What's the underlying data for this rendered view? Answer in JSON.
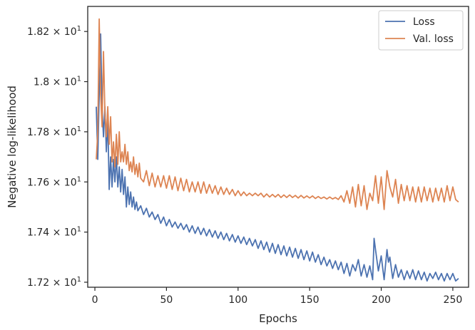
{
  "chart_data": {
    "type": "line",
    "title": "",
    "xlabel": "Epochs",
    "ylabel": "Negative log-likelihood",
    "xlim": [
      -5,
      261
    ],
    "ylim": [
      17.18,
      18.3
    ],
    "x_ticks": [
      {
        "value": 0,
        "label": "0"
      },
      {
        "value": 50,
        "label": "50"
      },
      {
        "value": 100,
        "label": "100"
      },
      {
        "value": 150,
        "label": "150"
      },
      {
        "value": 200,
        "label": "200"
      },
      {
        "value": 250,
        "label": "250"
      }
    ],
    "y_ticks": [
      {
        "value": 17.2,
        "base": "1.72",
        "exp": "1"
      },
      {
        "value": 17.4,
        "base": "1.74",
        "exp": "1"
      },
      {
        "value": 17.6,
        "base": "1.76",
        "exp": "1"
      },
      {
        "value": 17.8,
        "base": "1.78",
        "exp": "1"
      },
      {
        "value": 18.0,
        "base": "1.8",
        "exp": "1"
      },
      {
        "value": 18.2,
        "base": "1.82",
        "exp": "1"
      }
    ],
    "grid": false,
    "legend_position": "top-right",
    "series": [
      {
        "name": "Loss",
        "color": "#4c72b0",
        "points": [
          [
            1,
            17.9
          ],
          [
            2,
            17.69
          ],
          [
            3,
            17.95
          ],
          [
            4,
            18.19
          ],
          [
            5,
            17.9
          ],
          [
            6,
            17.78
          ],
          [
            7,
            17.9
          ],
          [
            8,
            17.72
          ],
          [
            9,
            17.85
          ],
          [
            10,
            17.57
          ],
          [
            11,
            17.7
          ],
          [
            12,
            17.58
          ],
          [
            13,
            17.69
          ],
          [
            14,
            17.6
          ],
          [
            15,
            17.7
          ],
          [
            16,
            17.58
          ],
          [
            17,
            17.66
          ],
          [
            18,
            17.56
          ],
          [
            19,
            17.65
          ],
          [
            20,
            17.55
          ],
          [
            21,
            17.62
          ],
          [
            22,
            17.5
          ],
          [
            23,
            17.58
          ],
          [
            24,
            17.51
          ],
          [
            25,
            17.56
          ],
          [
            26,
            17.5
          ],
          [
            27,
            17.54
          ],
          [
            28,
            17.49
          ],
          [
            29,
            17.52
          ],
          [
            30,
            17.485
          ],
          [
            32,
            17.505
          ],
          [
            34,
            17.47
          ],
          [
            36,
            17.495
          ],
          [
            38,
            17.46
          ],
          [
            40,
            17.48
          ],
          [
            42,
            17.45
          ],
          [
            44,
            17.47
          ],
          [
            46,
            17.435
          ],
          [
            48,
            17.46
          ],
          [
            50,
            17.425
          ],
          [
            52,
            17.45
          ],
          [
            54,
            17.42
          ],
          [
            56,
            17.44
          ],
          [
            58,
            17.415
          ],
          [
            60,
            17.435
          ],
          [
            62,
            17.41
          ],
          [
            64,
            17.43
          ],
          [
            66,
            17.4
          ],
          [
            68,
            17.425
          ],
          [
            70,
            17.395
          ],
          [
            72,
            17.42
          ],
          [
            74,
            17.39
          ],
          [
            76,
            17.415
          ],
          [
            78,
            17.385
          ],
          [
            80,
            17.41
          ],
          [
            82,
            17.38
          ],
          [
            84,
            17.405
          ],
          [
            86,
            17.375
          ],
          [
            88,
            17.4
          ],
          [
            90,
            17.37
          ],
          [
            92,
            17.395
          ],
          [
            94,
            17.365
          ],
          [
            96,
            17.39
          ],
          [
            98,
            17.36
          ],
          [
            100,
            17.385
          ],
          [
            102,
            17.355
          ],
          [
            104,
            17.38
          ],
          [
            106,
            17.35
          ],
          [
            108,
            17.375
          ],
          [
            110,
            17.345
          ],
          [
            112,
            17.37
          ],
          [
            114,
            17.335
          ],
          [
            116,
            17.365
          ],
          [
            118,
            17.33
          ],
          [
            120,
            17.36
          ],
          [
            122,
            17.32
          ],
          [
            124,
            17.355
          ],
          [
            126,
            17.315
          ],
          [
            128,
            17.35
          ],
          [
            130,
            17.31
          ],
          [
            132,
            17.345
          ],
          [
            134,
            17.305
          ],
          [
            136,
            17.34
          ],
          [
            138,
            17.3
          ],
          [
            140,
            17.335
          ],
          [
            142,
            17.295
          ],
          [
            144,
            17.33
          ],
          [
            146,
            17.29
          ],
          [
            148,
            17.325
          ],
          [
            150,
            17.285
          ],
          [
            152,
            17.32
          ],
          [
            154,
            17.28
          ],
          [
            156,
            17.31
          ],
          [
            158,
            17.27
          ],
          [
            160,
            17.3
          ],
          [
            162,
            17.265
          ],
          [
            164,
            17.29
          ],
          [
            166,
            17.255
          ],
          [
            168,
            17.285
          ],
          [
            170,
            17.25
          ],
          [
            172,
            17.28
          ],
          [
            174,
            17.235
          ],
          [
            176,
            17.275
          ],
          [
            178,
            17.225
          ],
          [
            180,
            17.27
          ],
          [
            182,
            17.245
          ],
          [
            184,
            17.29
          ],
          [
            186,
            17.225
          ],
          [
            188,
            17.27
          ],
          [
            190,
            17.22
          ],
          [
            192,
            17.265
          ],
          [
            194,
            17.21
          ],
          [
            195,
            17.375
          ],
          [
            196,
            17.33
          ],
          [
            198,
            17.245
          ],
          [
            200,
            17.305
          ],
          [
            202,
            17.21
          ],
          [
            204,
            17.33
          ],
          [
            205,
            17.28
          ],
          [
            206,
            17.3
          ],
          [
            208,
            17.215
          ],
          [
            210,
            17.27
          ],
          [
            212,
            17.22
          ],
          [
            214,
            17.25
          ],
          [
            216,
            17.21
          ],
          [
            218,
            17.245
          ],
          [
            220,
            17.215
          ],
          [
            222,
            17.25
          ],
          [
            224,
            17.21
          ],
          [
            226,
            17.245
          ],
          [
            228,
            17.21
          ],
          [
            230,
            17.24
          ],
          [
            232,
            17.205
          ],
          [
            234,
            17.235
          ],
          [
            236,
            17.215
          ],
          [
            238,
            17.24
          ],
          [
            240,
            17.21
          ],
          [
            242,
            17.235
          ],
          [
            244,
            17.205
          ],
          [
            246,
            17.235
          ],
          [
            248,
            17.21
          ],
          [
            250,
            17.235
          ],
          [
            252,
            17.205
          ],
          [
            254,
            17.215
          ]
        ]
      },
      {
        "name": "Val. loss",
        "color": "#dd8452",
        "points": [
          [
            1,
            17.69
          ],
          [
            2,
            17.8
          ],
          [
            3,
            18.25
          ],
          [
            4,
            17.95
          ],
          [
            5,
            17.82
          ],
          [
            6,
            18.12
          ],
          [
            7,
            17.88
          ],
          [
            8,
            17.78
          ],
          [
            9,
            17.9
          ],
          [
            10,
            17.75
          ],
          [
            11,
            17.86
          ],
          [
            12,
            17.68
          ],
          [
            13,
            17.76
          ],
          [
            14,
            17.66
          ],
          [
            15,
            17.79
          ],
          [
            16,
            17.67
          ],
          [
            17,
            17.8
          ],
          [
            18,
            17.68
          ],
          [
            19,
            17.72
          ],
          [
            20,
            17.68
          ],
          [
            21,
            17.75
          ],
          [
            22,
            17.67
          ],
          [
            23,
            17.72
          ],
          [
            24,
            17.645
          ],
          [
            25,
            17.68
          ],
          [
            26,
            17.64
          ],
          [
            27,
            17.7
          ],
          [
            28,
            17.63
          ],
          [
            29,
            17.67
          ],
          [
            30,
            17.62
          ],
          [
            31,
            17.675
          ],
          [
            32,
            17.615
          ],
          [
            34,
            17.6
          ],
          [
            36,
            17.645
          ],
          [
            38,
            17.585
          ],
          [
            40,
            17.635
          ],
          [
            42,
            17.58
          ],
          [
            44,
            17.625
          ],
          [
            46,
            17.58
          ],
          [
            48,
            17.625
          ],
          [
            50,
            17.575
          ],
          [
            52,
            17.625
          ],
          [
            54,
            17.57
          ],
          [
            56,
            17.62
          ],
          [
            58,
            17.565
          ],
          [
            60,
            17.615
          ],
          [
            62,
            17.565
          ],
          [
            64,
            17.61
          ],
          [
            66,
            17.56
          ],
          [
            68,
            17.6
          ],
          [
            70,
            17.56
          ],
          [
            72,
            17.6
          ],
          [
            74,
            17.555
          ],
          [
            76,
            17.6
          ],
          [
            78,
            17.555
          ],
          [
            80,
            17.59
          ],
          [
            82,
            17.555
          ],
          [
            84,
            17.585
          ],
          [
            86,
            17.55
          ],
          [
            88,
            17.58
          ],
          [
            90,
            17.55
          ],
          [
            92,
            17.575
          ],
          [
            94,
            17.55
          ],
          [
            96,
            17.57
          ],
          [
            98,
            17.545
          ],
          [
            100,
            17.565
          ],
          [
            102,
            17.545
          ],
          [
            104,
            17.56
          ],
          [
            106,
            17.545
          ],
          [
            108,
            17.555
          ],
          [
            110,
            17.545
          ],
          [
            112,
            17.555
          ],
          [
            114,
            17.545
          ],
          [
            116,
            17.555
          ],
          [
            118,
            17.54
          ],
          [
            120,
            17.552
          ],
          [
            122,
            17.54
          ],
          [
            124,
            17.55
          ],
          [
            126,
            17.54
          ],
          [
            128,
            17.55
          ],
          [
            130,
            17.538
          ],
          [
            132,
            17.548
          ],
          [
            134,
            17.538
          ],
          [
            136,
            17.548
          ],
          [
            138,
            17.538
          ],
          [
            140,
            17.546
          ],
          [
            142,
            17.536
          ],
          [
            144,
            17.546
          ],
          [
            146,
            17.536
          ],
          [
            148,
            17.544
          ],
          [
            150,
            17.536
          ],
          [
            152,
            17.544
          ],
          [
            154,
            17.534
          ],
          [
            156,
            17.542
          ],
          [
            158,
            17.534
          ],
          [
            160,
            17.54
          ],
          [
            162,
            17.532
          ],
          [
            164,
            17.54
          ],
          [
            166,
            17.532
          ],
          [
            168,
            17.538
          ],
          [
            170,
            17.53
          ],
          [
            172,
            17.545
          ],
          [
            174,
            17.52
          ],
          [
            176,
            17.565
          ],
          [
            178,
            17.515
          ],
          [
            180,
            17.58
          ],
          [
            182,
            17.5
          ],
          [
            184,
            17.59
          ],
          [
            186,
            17.505
          ],
          [
            188,
            17.585
          ],
          [
            190,
            17.49
          ],
          [
            192,
            17.555
          ],
          [
            194,
            17.525
          ],
          [
            196,
            17.625
          ],
          [
            198,
            17.515
          ],
          [
            200,
            17.62
          ],
          [
            202,
            17.49
          ],
          [
            204,
            17.645
          ],
          [
            206,
            17.58
          ],
          [
            208,
            17.54
          ],
          [
            210,
            17.61
          ],
          [
            212,
            17.515
          ],
          [
            214,
            17.59
          ],
          [
            216,
            17.525
          ],
          [
            218,
            17.585
          ],
          [
            220,
            17.525
          ],
          [
            222,
            17.58
          ],
          [
            224,
            17.52
          ],
          [
            226,
            17.58
          ],
          [
            228,
            17.52
          ],
          [
            230,
            17.58
          ],
          [
            232,
            17.525
          ],
          [
            234,
            17.575
          ],
          [
            236,
            17.52
          ],
          [
            238,
            17.575
          ],
          [
            240,
            17.525
          ],
          [
            242,
            17.575
          ],
          [
            244,
            17.52
          ],
          [
            246,
            17.585
          ],
          [
            248,
            17.525
          ],
          [
            250,
            17.58
          ],
          [
            252,
            17.53
          ],
          [
            254,
            17.52
          ]
        ]
      }
    ]
  }
}
